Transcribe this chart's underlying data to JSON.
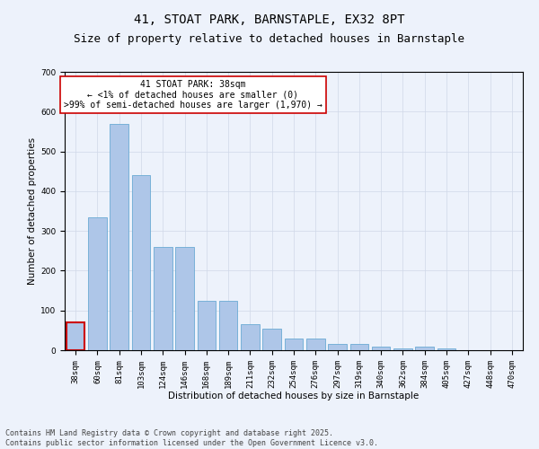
{
  "title_line1": "41, STOAT PARK, BARNSTAPLE, EX32 8PT",
  "title_line2": "Size of property relative to detached houses in Barnstaple",
  "xlabel": "Distribution of detached houses by size in Barnstaple",
  "ylabel": "Number of detached properties",
  "categories": [
    "38sqm",
    "60sqm",
    "81sqm",
    "103sqm",
    "124sqm",
    "146sqm",
    "168sqm",
    "189sqm",
    "211sqm",
    "232sqm",
    "254sqm",
    "276sqm",
    "297sqm",
    "319sqm",
    "340sqm",
    "362sqm",
    "384sqm",
    "405sqm",
    "427sqm",
    "448sqm",
    "470sqm"
  ],
  "values": [
    70,
    335,
    570,
    440,
    260,
    260,
    125,
    125,
    65,
    55,
    30,
    30,
    15,
    15,
    10,
    5,
    10,
    5,
    0,
    0,
    0
  ],
  "bar_color": "#aec6e8",
  "bar_edge_color": "#6aaad4",
  "highlight_index": 0,
  "highlight_color": "#cc0000",
  "ylim": [
    0,
    700
  ],
  "yticks": [
    0,
    100,
    200,
    300,
    400,
    500,
    600,
    700
  ],
  "annotation_text": "41 STOAT PARK: 38sqm\n← <1% of detached houses are smaller (0)\n>99% of semi-detached houses are larger (1,970) →",
  "annotation_box_color": "#ffffff",
  "annotation_border_color": "#cc0000",
  "grid_color": "#d0d8e8",
  "bg_color": "#edf2fb",
  "footer_line1": "Contains HM Land Registry data © Crown copyright and database right 2025.",
  "footer_line2": "Contains public sector information licensed under the Open Government Licence v3.0.",
  "title_fontsize": 10,
  "subtitle_fontsize": 9,
  "axis_label_fontsize": 7.5,
  "tick_fontsize": 6.5,
  "annotation_fontsize": 7,
  "footer_fontsize": 6
}
